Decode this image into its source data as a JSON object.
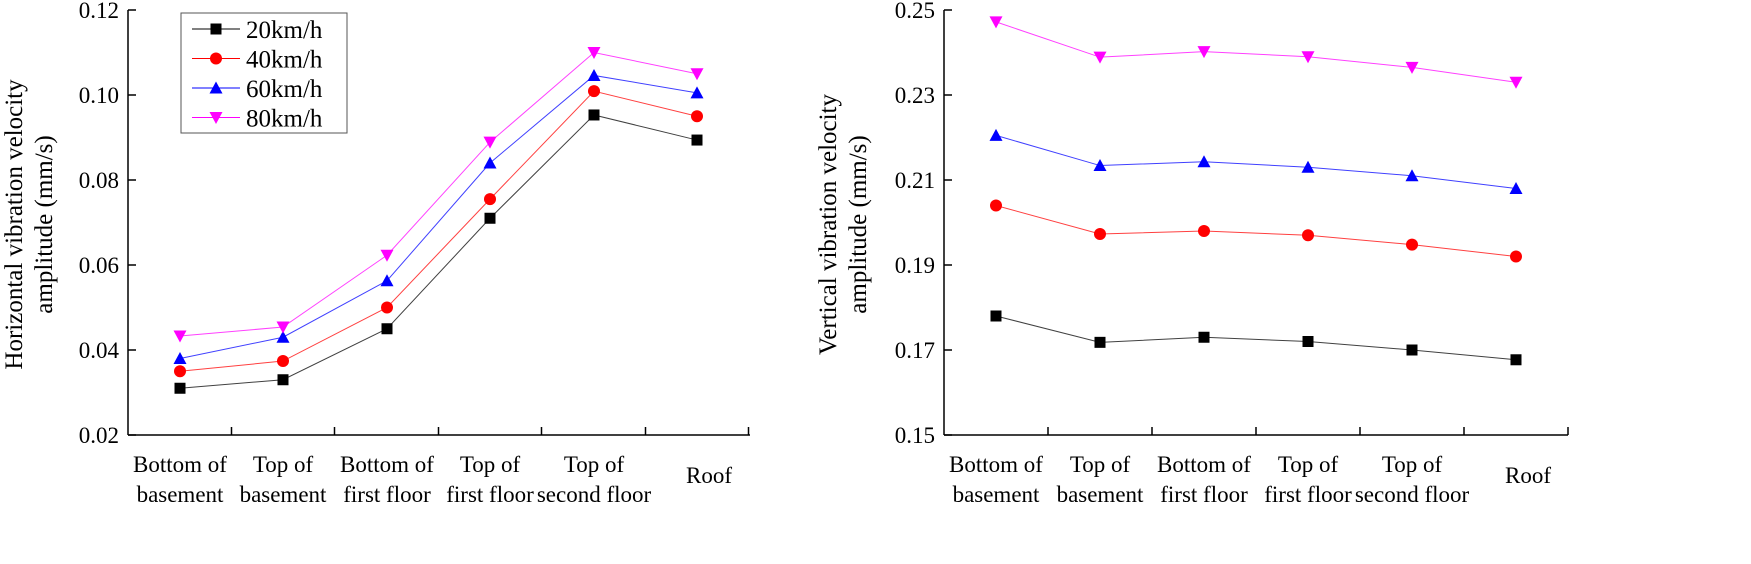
{
  "chart_data": [
    {
      "type": "line",
      "title": "",
      "xlabel": "",
      "ylabel": [
        "Horizontal vibration velocity",
        "amplitude (mm/s)"
      ],
      "categories": [
        [
          "Bottom of",
          "basement"
        ],
        [
          "Top of",
          "basement"
        ],
        [
          "Bottom of",
          "first floor"
        ],
        [
          "Top of",
          "first floor"
        ],
        [
          "Top of",
          "second floor"
        ],
        [
          "Roof",
          ""
        ]
      ],
      "ylim": [
        0.02,
        0.12
      ],
      "yticks": [
        "0.02",
        "0.04",
        "0.06",
        "0.08",
        "0.10",
        "0.12"
      ],
      "legend_position": "top-left",
      "series": [
        {
          "name": "20km/h",
          "color": "#000000",
          "marker": "square",
          "values": [
            0.031,
            0.033,
            0.045,
            0.071,
            0.0953,
            0.0894
          ]
        },
        {
          "name": "40km/h",
          "color": "#ff0000",
          "marker": "circle",
          "values": [
            0.035,
            0.0374,
            0.05,
            0.0755,
            0.1009,
            0.095
          ]
        },
        {
          "name": "60km/h",
          "color": "#0000ff",
          "marker": "triangle-up",
          "values": [
            0.038,
            0.043,
            0.0563,
            0.084,
            0.1046,
            0.1005
          ]
        },
        {
          "name": "80km/h",
          "color": "#ff00ff",
          "marker": "triangle-down",
          "values": [
            0.0433,
            0.0454,
            0.0623,
            0.0889,
            0.11,
            0.105
          ]
        }
      ]
    },
    {
      "type": "line",
      "title": "",
      "xlabel": "",
      "ylabel": [
        "Vertical vibration velocity",
        "amplitude (mm/s)"
      ],
      "categories": [
        [
          "Bottom of",
          "basement"
        ],
        [
          "Top of",
          "basement"
        ],
        [
          "Bottom of",
          "first floor"
        ],
        [
          "Top of",
          "first floor"
        ],
        [
          "Top of",
          "second floor"
        ],
        [
          "Roof",
          ""
        ]
      ],
      "ylim": [
        0.15,
        0.25
      ],
      "yticks": [
        "0.15",
        "0.17",
        "0.19",
        "0.21",
        "0.23",
        "0.25"
      ],
      "series": [
        {
          "name": "20km/h",
          "color": "#000000",
          "marker": "square",
          "values": [
            0.178,
            0.1718,
            0.173,
            0.172,
            0.17,
            0.1677
          ]
        },
        {
          "name": "40km/h",
          "color": "#ff0000",
          "marker": "circle",
          "values": [
            0.204,
            0.1973,
            0.198,
            0.197,
            0.1948,
            0.192
          ]
        },
        {
          "name": "60km/h",
          "color": "#0000ff",
          "marker": "triangle-up",
          "values": [
            0.2205,
            0.2134,
            0.2143,
            0.213,
            0.211,
            0.208
          ]
        },
        {
          "name": "80km/h",
          "color": "#ff00ff",
          "marker": "triangle-down",
          "values": [
            0.2472,
            0.2389,
            0.2402,
            0.239,
            0.2365,
            0.233
          ]
        }
      ]
    }
  ]
}
